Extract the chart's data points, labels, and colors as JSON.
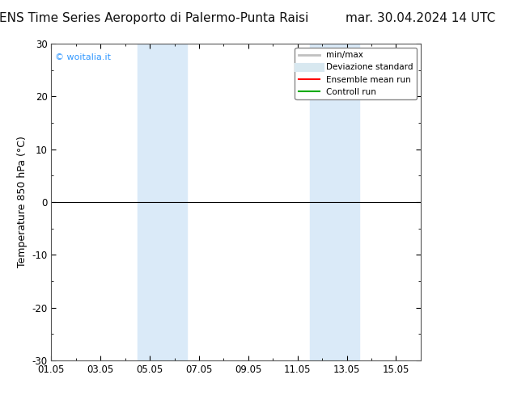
{
  "title_left": "ENS Time Series Aeroporto di Palermo-Punta Raisi",
  "title_right": "mar. 30.04.2024 14 UTC",
  "ylabel": "Temperature 850 hPa (°C)",
  "xlabel": "",
  "xlim_dates": [
    "2024-05-01",
    "2024-05-16"
  ],
  "ylim": [
    -30,
    30
  ],
  "yticks": [
    -30,
    -20,
    -10,
    0,
    10,
    20,
    30
  ],
  "xtick_labels": [
    "01.05",
    "03.05",
    "05.05",
    "07.05",
    "09.05",
    "11.05",
    "13.05",
    "15.05"
  ],
  "xtick_positions": [
    0,
    2,
    4,
    6,
    8,
    10,
    12,
    14
  ],
  "bg_color": "#ffffff",
  "plot_bg_color": "#ffffff",
  "shaded_bands": [
    {
      "x_start": 3.5,
      "x_end": 5.5,
      "color": "#daeaf8"
    },
    {
      "x_start": 10.5,
      "x_end": 12.5,
      "color": "#daeaf8"
    }
  ],
  "hline_y": 0,
  "hline_color": "#000000",
  "watermark": "© woitalia.it",
  "watermark_color": "#3399ff",
  "legend_entries": [
    {
      "label": "min/max",
      "color": "#c0c0c0",
      "lw": 2
    },
    {
      "label": "Deviazione standard",
      "color": "#d8e8f0",
      "lw": 8
    },
    {
      "label": "Ensemble mean run",
      "color": "#ff0000",
      "lw": 1.5
    },
    {
      "label": "Controll run",
      "color": "#00aa00",
      "lw": 1.5
    }
  ],
  "title_fontsize": 11,
  "axis_fontsize": 9,
  "tick_fontsize": 8.5
}
